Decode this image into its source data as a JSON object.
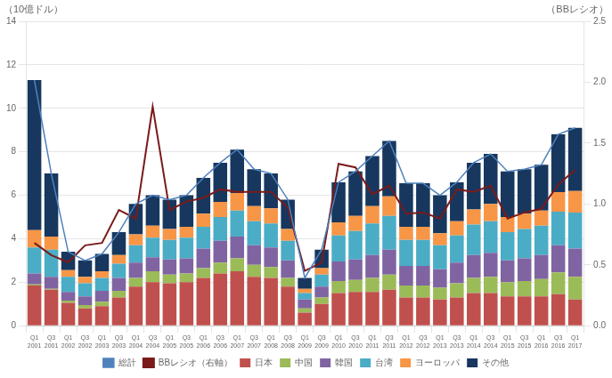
{
  "chart_data": {
    "type": "bar",
    "stacked": true,
    "ylabel": "（10億ドル）",
    "y2label": "（BBレシオ）",
    "categories": [
      "Q1\n2001",
      "Q3\n2001",
      "Q1\n2002",
      "Q3\n2002",
      "Q1\n2003",
      "Q3\n2003",
      "Q1\n2004",
      "Q3\n2004",
      "Q1\n2005",
      "Q3\n2005",
      "Q1\n2006",
      "Q3\n2006",
      "Q1\n2007",
      "Q3\n2007",
      "Q1\n2008",
      "Q3\n2008",
      "Q1\n2009",
      "Q3\n2009",
      "Q1\n2010",
      "Q3\n2010",
      "Q1\n2011",
      "Q3\n2011",
      "Q1\n2012",
      "Q3\n2012",
      "Q1\n2013",
      "Q3\n2013",
      "Q1\n2014",
      "Q3\n2014",
      "Q1\n2015",
      "Q3\n2015",
      "Q1\n2016",
      "Q3\n2016",
      "Q1\n2017"
    ],
    "series": [
      {
        "name": "日本",
        "color": "#c0504d",
        "values": [
          1.85,
          1.65,
          1.05,
          0.8,
          0.9,
          1.3,
          1.8,
          2.0,
          1.95,
          2.0,
          2.2,
          2.4,
          2.5,
          2.25,
          2.2,
          1.8,
          0.6,
          1.0,
          1.5,
          1.55,
          1.55,
          1.65,
          1.3,
          1.3,
          1.2,
          1.3,
          1.5,
          1.5,
          1.35,
          1.35,
          1.35,
          1.45,
          1.2
        ]
      },
      {
        "name": "中国",
        "color": "#9bbb59",
        "values": [
          0.05,
          0.05,
          0.1,
          0.15,
          0.2,
          0.3,
          0.4,
          0.5,
          0.4,
          0.4,
          0.45,
          0.5,
          0.6,
          0.55,
          0.5,
          0.4,
          0.2,
          0.3,
          0.55,
          0.55,
          0.65,
          0.7,
          0.55,
          0.55,
          0.55,
          0.65,
          0.7,
          0.75,
          0.65,
          0.7,
          0.8,
          1.0,
          1.05
        ]
      },
      {
        "name": "韓国",
        "color": "#8064a2",
        "values": [
          0.5,
          0.55,
          0.4,
          0.4,
          0.5,
          0.6,
          0.7,
          0.65,
          0.7,
          0.7,
          0.9,
          1.0,
          1.0,
          0.9,
          0.9,
          0.8,
          0.4,
          0.5,
          0.9,
          0.95,
          1.05,
          1.15,
          0.9,
          0.9,
          0.85,
          0.95,
          1.05,
          1.1,
          1.0,
          1.05,
          1.1,
          1.25,
          1.3
        ]
      },
      {
        "name": "台湾",
        "color": "#4bacc6",
        "values": [
          1.2,
          1.25,
          0.7,
          0.6,
          0.6,
          0.65,
          0.8,
          0.9,
          0.9,
          0.95,
          1.0,
          1.1,
          1.2,
          1.1,
          1.1,
          0.9,
          0.3,
          0.55,
          1.2,
          1.3,
          1.45,
          1.55,
          1.2,
          1.2,
          1.1,
          1.25,
          1.4,
          1.45,
          1.3,
          1.35,
          1.35,
          1.55,
          1.65
        ]
      },
      {
        "name": "ヨーロッパ",
        "color": "#f79646",
        "values": [
          0.8,
          0.6,
          0.3,
          0.3,
          0.3,
          0.4,
          0.5,
          0.55,
          0.5,
          0.5,
          0.6,
          0.7,
          0.8,
          0.7,
          0.7,
          0.55,
          0.2,
          0.3,
          0.6,
          0.7,
          0.8,
          0.9,
          0.6,
          0.6,
          0.55,
          0.65,
          0.7,
          0.8,
          0.7,
          0.7,
          0.7,
          0.9,
          1.0
        ]
      },
      {
        "name": "その他",
        "color": "#17375e",
        "values": [
          6.9,
          2.9,
          0.85,
          0.75,
          0.8,
          1.05,
          1.4,
          1.4,
          1.35,
          1.45,
          1.65,
          1.8,
          2.0,
          1.7,
          1.6,
          1.35,
          0.5,
          0.85,
          1.85,
          2.05,
          2.3,
          2.55,
          2.0,
          2.0,
          1.75,
          1.8,
          2.15,
          2.3,
          2.1,
          2.05,
          2.1,
          2.65,
          2.9
        ]
      },
      {
        "name": "総計",
        "type": "line",
        "color": "#4f81bd",
        "values": [
          11.3,
          7.0,
          3.4,
          3.0,
          3.3,
          4.3,
          5.6,
          6.0,
          5.8,
          6.0,
          6.8,
          7.5,
          8.1,
          7.2,
          7.0,
          5.8,
          2.2,
          3.5,
          6.6,
          7.1,
          7.8,
          8.5,
          6.55,
          6.55,
          6.0,
          6.6,
          7.5,
          7.9,
          7.1,
          7.2,
          7.4,
          8.8,
          9.1
        ]
      },
      {
        "name": "BBレシオ（右軸）",
        "type": "line",
        "axis": "y2",
        "color": "#7b1a1a",
        "values": [
          0.68,
          0.58,
          0.52,
          0.66,
          0.68,
          0.95,
          0.88,
          1.8,
          0.95,
          1.02,
          1.05,
          1.12,
          1.1,
          1.1,
          1.1,
          0.97,
          0.45,
          0.52,
          1.33,
          1.3,
          1.08,
          1.15,
          0.92,
          0.93,
          0.88,
          1.12,
          1.1,
          1.15,
          0.88,
          0.93,
          0.96,
          1.16,
          1.28
        ]
      }
    ],
    "ylim": [
      0,
      14
    ],
    "yticks": [
      0,
      2,
      4,
      6,
      8,
      10,
      12,
      14
    ],
    "y2lim": [
      0,
      2.5
    ],
    "y2ticks": [
      {
        "value": 0,
        "label": "0.0"
      },
      0.5,
      {
        "value": 1,
        "label": "1.0"
      },
      1.5,
      {
        "value": 2,
        "label": "2.0"
      },
      2.5
    ],
    "grid": true,
    "legend": "bottom"
  }
}
